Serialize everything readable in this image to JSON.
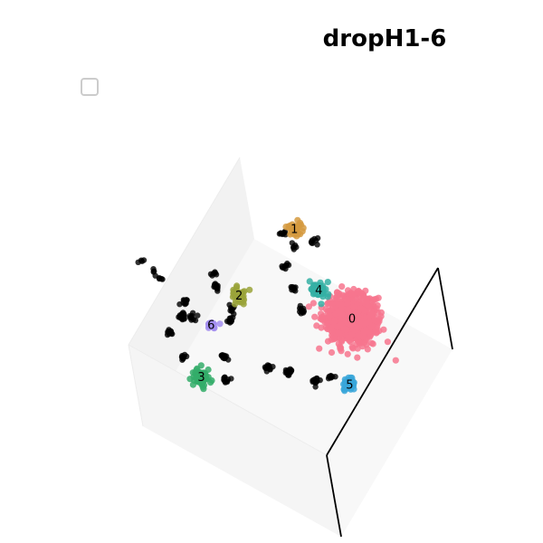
{
  "chart_data": {
    "type": "scatter",
    "projection": "3d",
    "title": "dropH1-6",
    "grid": false,
    "legend": {
      "placement": "upper-left",
      "entries": []
    },
    "noise_color": "#000000",
    "clusters": [
      {
        "label": "0",
        "color": "#f7768e",
        "center": [
          0.75,
          0.33,
          0.5
        ],
        "spread": 0.055,
        "count": 900
      },
      {
        "label": "1",
        "color": "#d59a3f",
        "center": [
          0.98,
          0.75,
          0.5
        ],
        "spread": 0.015,
        "count": 40
      },
      {
        "label": "2",
        "color": "#9aa33a",
        "center": [
          0.59,
          0.81,
          0.5
        ],
        "spread": 0.015,
        "count": 40
      },
      {
        "label": "3",
        "color": "#34ad6a",
        "center": [
          0.18,
          0.77,
          0.5
        ],
        "spread": 0.02,
        "count": 60
      },
      {
        "label": "4",
        "color": "#35b0a5",
        "center": [
          0.79,
          0.52,
          0.5
        ],
        "spread": 0.02,
        "count": 50
      },
      {
        "label": "5",
        "color": "#38a6d9",
        "center": [
          0.48,
          0.19,
          0.5
        ],
        "spread": 0.015,
        "count": 40
      },
      {
        "label": "6",
        "color": "#a38ef0",
        "center": [
          0.41,
          0.85,
          0.5
        ],
        "spread": 0.01,
        "count": 20
      }
    ],
    "noise_groups": [
      {
        "center": [
          0.38,
          0.98,
          0.5
        ],
        "count": 22
      },
      {
        "center": [
          0.45,
          1.0,
          0.5
        ],
        "count": 12
      },
      {
        "center": [
          0.29,
          0.99,
          0.5
        ],
        "count": 12
      },
      {
        "center": [
          0.4,
          0.94,
          0.5
        ],
        "count": 10
      },
      {
        "center": [
          0.58,
          0.92,
          0.5
        ],
        "count": 14
      },
      {
        "center": [
          0.62,
          0.96,
          0.5
        ],
        "count": 6
      },
      {
        "center": [
          0.22,
          0.88,
          0.5
        ],
        "count": 10
      },
      {
        "center": [
          0.47,
          0.79,
          0.5
        ],
        "count": 10
      },
      {
        "center": [
          0.52,
          0.8,
          0.5
        ],
        "count": 8
      },
      {
        "center": [
          0.31,
          0.73,
          0.5
        ],
        "count": 14
      },
      {
        "center": [
          0.22,
          0.67,
          0.5
        ],
        "count": 12
      },
      {
        "center": [
          0.37,
          0.54,
          0.5
        ],
        "count": 12
      },
      {
        "center": [
          0.4,
          0.45,
          0.5
        ],
        "count": 16
      },
      {
        "center": [
          0.42,
          0.33,
          0.5
        ],
        "count": 14
      },
      {
        "center": [
          0.47,
          0.28,
          0.5
        ],
        "count": 10
      },
      {
        "center": [
          0.81,
          0.7,
          0.5
        ],
        "count": 8
      },
      {
        "center": [
          0.74,
          0.62,
          0.5
        ],
        "count": 10
      },
      {
        "center": [
          0.67,
          0.54,
          0.5
        ],
        "count": 10
      },
      {
        "center": [
          0.94,
          0.79,
          0.5
        ],
        "count": 10
      },
      {
        "center": [
          0.98,
          0.65,
          0.5
        ],
        "count": 8
      },
      {
        "center": [
          0.91,
          0.72,
          0.5
        ],
        "count": 6
      },
      {
        "center": [
          0.51,
          1.25,
          0.5
        ],
        "count": 4
      },
      {
        "center": [
          0.48,
          1.15,
          0.5
        ],
        "count": 4
      },
      {
        "center": [
          0.5,
          1.19,
          0.5
        ],
        "count": 4
      }
    ]
  }
}
